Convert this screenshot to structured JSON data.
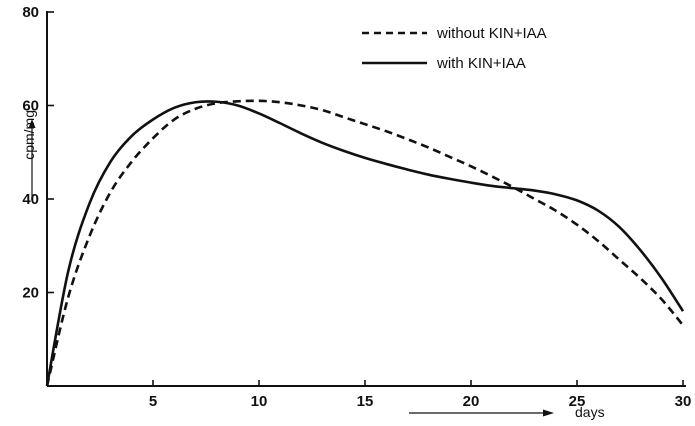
{
  "chart_data": {
    "type": "line",
    "title": "",
    "xlabel": "days",
    "ylabel": "cpm/mg",
    "xlim": [
      0,
      30
    ],
    "ylim": [
      0,
      80
    ],
    "x_ticks": [
      5,
      10,
      15,
      20,
      25,
      30
    ],
    "y_ticks": [
      20,
      40,
      60,
      80
    ],
    "legend_position": "top-right",
    "grid": false,
    "series": [
      {
        "name": "without KIN+IAA",
        "line_style": "dashed",
        "x": [
          0,
          1,
          2,
          3,
          4,
          5,
          6,
          7,
          8,
          9,
          10,
          11,
          12,
          13,
          14,
          15,
          16,
          17,
          18,
          19,
          20,
          21,
          22,
          23,
          24,
          25,
          26,
          27,
          28,
          29,
          30
        ],
        "y": [
          0,
          19,
          32,
          41.5,
          48,
          53,
          57,
          59.3,
          60.5,
          60.9,
          61,
          60.7,
          60,
          59,
          57.5,
          56,
          54.5,
          52.8,
          51,
          49,
          47,
          44.8,
          42.5,
          40,
          37.5,
          34.5,
          31,
          27,
          23,
          18.5,
          13
        ]
      },
      {
        "name": "with KIN+IAA",
        "line_style": "solid",
        "x": [
          0,
          1,
          2,
          3,
          4,
          5,
          6,
          7,
          8,
          9,
          10,
          11,
          12,
          13,
          14,
          15,
          16,
          17,
          18,
          19,
          20,
          21,
          22,
          23,
          24,
          25,
          26,
          27,
          28,
          29,
          30
        ],
        "y": [
          0,
          24.5,
          39,
          48,
          53.5,
          57,
          59.5,
          60.7,
          60.8,
          60,
          58.3,
          56.2,
          54,
          52,
          50.3,
          48.8,
          47.5,
          46.3,
          45.2,
          44.3,
          43.5,
          42.8,
          42.3,
          41.8,
          41,
          39.7,
          37.5,
          34,
          29,
          23,
          16
        ]
      }
    ]
  }
}
